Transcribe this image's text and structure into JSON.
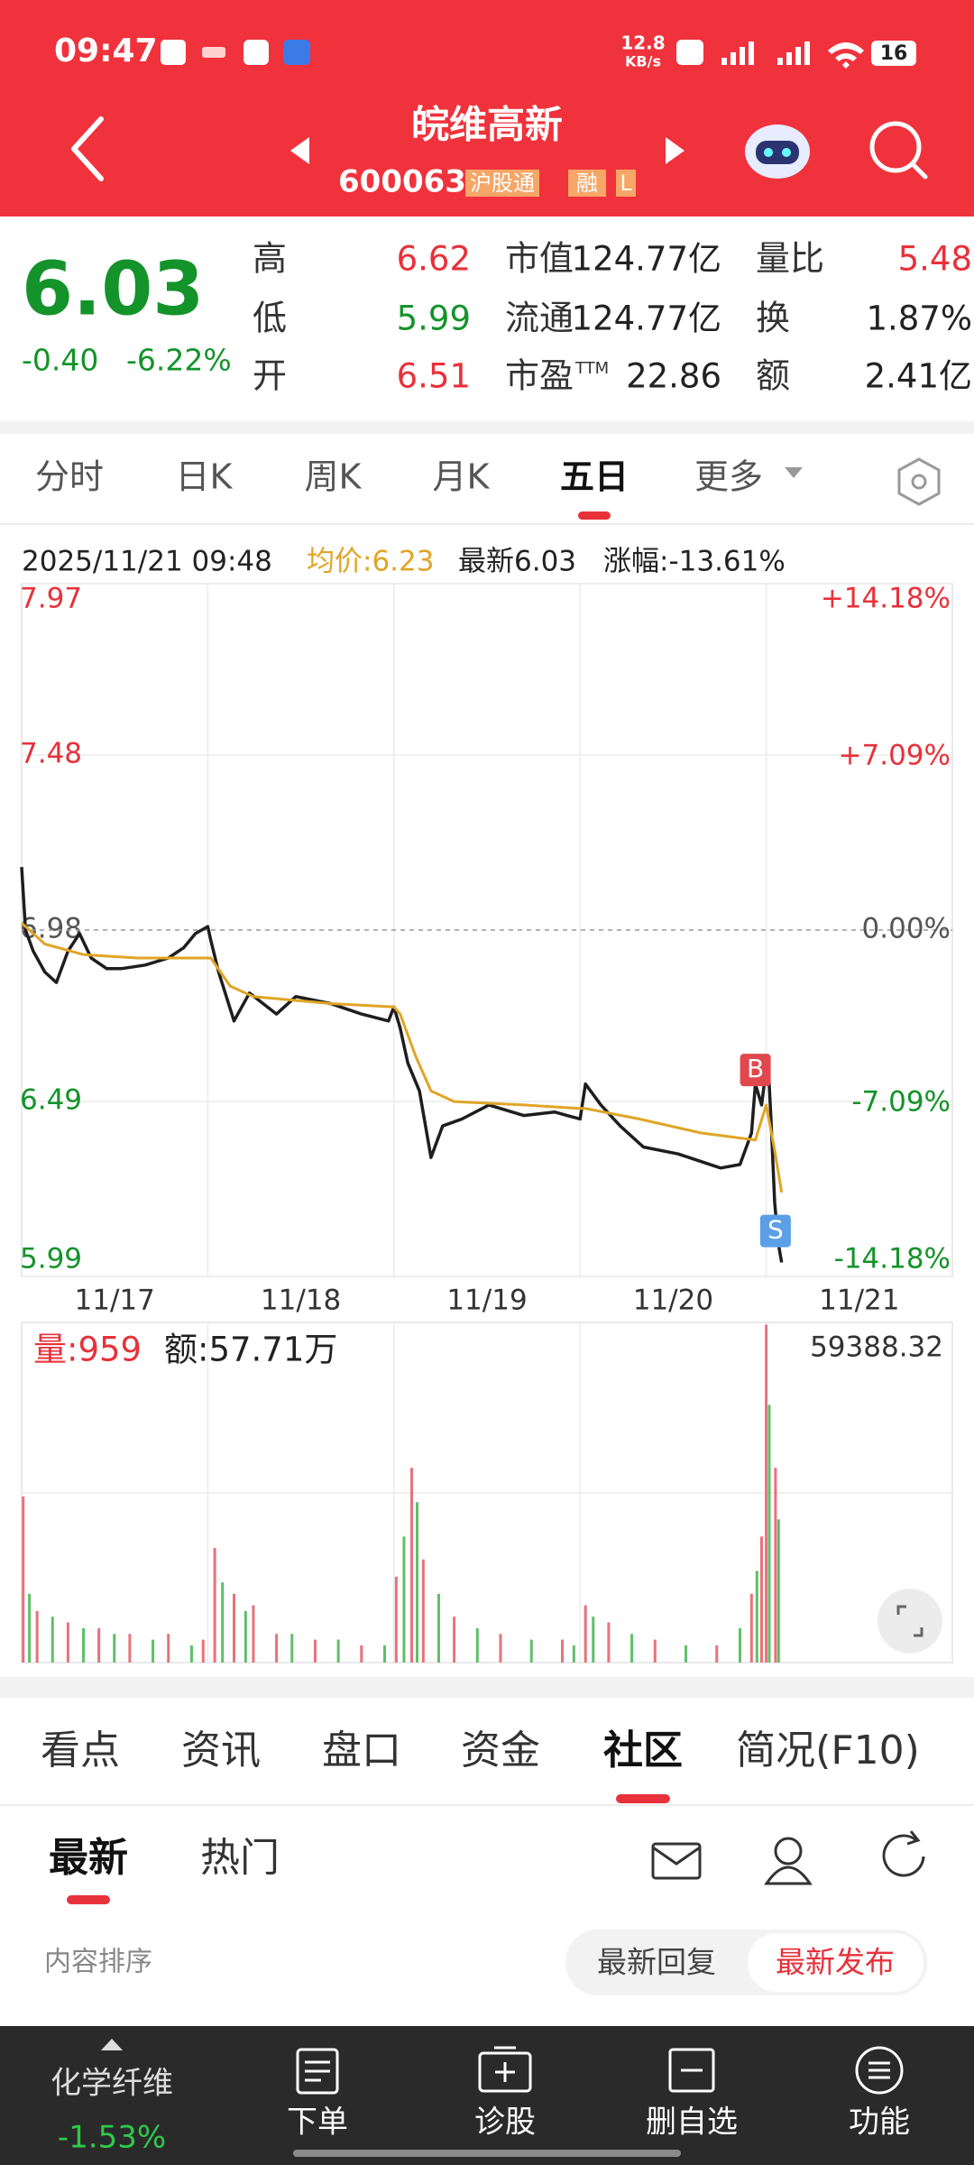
{
  "status_bar": {
    "time": "09:47",
    "net_speed": "12.8",
    "net_unit": "KB/s",
    "battery": "16"
  },
  "header": {
    "title": "皖维高新",
    "code": "600063",
    "tags": [
      "沪股通",
      "融",
      "L"
    ]
  },
  "quote": {
    "price": "6.03",
    "change": "-0.40",
    "change_pct": "-6.22%",
    "stats": [
      {
        "label": "高",
        "value": "6.62",
        "color": "#e8313a"
      },
      {
        "label": "低",
        "value": "5.99",
        "color": "#14932a"
      },
      {
        "label": "开",
        "value": "6.51",
        "color": "#e8313a"
      },
      {
        "label": "市值",
        "value": "124.77亿",
        "color": "#222222"
      },
      {
        "label": "流通",
        "value": "124.77亿",
        "color": "#222222"
      },
      {
        "label": "市盈",
        "sup": "TTM",
        "value": "22.86",
        "color": "#222222"
      },
      {
        "label": "量比",
        "value": "5.48",
        "color": "#e8313a"
      },
      {
        "label": "换",
        "value": "1.87%",
        "color": "#222222"
      },
      {
        "label": "额",
        "value": "2.41亿",
        "color": "#222222"
      }
    ]
  },
  "period_tabs": {
    "items": [
      "分时",
      "日K",
      "周K",
      "月K",
      "五日",
      "更多"
    ],
    "selected": 4
  },
  "chart_info": {
    "datetime": "2025/11/21 09:48",
    "avg": "均价:6.23",
    "latest": "最新6.03",
    "change": "涨幅:-13.61%"
  },
  "chart_data": [
    {
      "type": "line",
      "categories": [
        "11/17",
        "11/18",
        "11/19",
        "11/20",
        "11/21"
      ],
      "xlim": [
        0,
        1205
      ],
      "ylim": [
        5.99,
        7.97
      ],
      "yticks": [
        5.99,
        6.49,
        6.98,
        7.48,
        7.97
      ],
      "y2lim": [
        -14.18,
        14.18
      ],
      "y2ticks": [
        {
          "value": -14.18,
          "label": "-14.18%"
        },
        {
          "value": -7.09,
          "label": "-7.09%"
        },
        {
          "value": 0,
          "label": "0.00%"
        },
        {
          "value": 7.09,
          "label": "+7.09%"
        },
        {
          "value": 14.18,
          "label": "+14.18%"
        }
      ],
      "prev_close": 6.98,
      "grid": true,
      "series": [
        {
          "color": "#1e1e1e",
          "x": [
            0,
            5,
            15,
            30,
            45,
            60,
            75,
            90,
            110,
            130,
            160,
            190,
            210,
            225,
            241,
            245,
            255,
            275,
            295,
            330,
            355,
            400,
            440,
            475,
            482,
            490,
            500,
            515,
            530,
            545,
            570,
            605,
            650,
            690,
            723,
            730,
            750,
            775,
            805,
            850,
            905,
            930,
            945,
            950,
            958,
            966,
            970,
            975,
            980,
            984
          ],
          "values": [
            7.16,
            6.98,
            6.92,
            6.86,
            6.83,
            6.92,
            6.97,
            6.9,
            6.87,
            6.87,
            6.88,
            6.9,
            6.93,
            6.97,
            6.99,
            6.95,
            6.86,
            6.72,
            6.8,
            6.74,
            6.79,
            6.77,
            6.74,
            6.72,
            6.76,
            6.7,
            6.6,
            6.52,
            6.33,
            6.42,
            6.44,
            6.48,
            6.45,
            6.46,
            6.44,
            6.54,
            6.48,
            6.42,
            6.36,
            6.34,
            6.3,
            6.31,
            6.4,
            6.54,
            6.48,
            6.62,
            6.45,
            6.2,
            6.08,
            6.03
          ]
        },
        {
          "color": "#e0a526",
          "x": [
            0,
            30,
            80,
            150,
            241,
            245,
            270,
            300,
            400,
            482,
            490,
            510,
            530,
            560,
            650,
            723,
            730,
            800,
            880,
            950,
            964,
            975,
            984
          ],
          "values": [
            7.0,
            6.94,
            6.91,
            6.9,
            6.9,
            6.9,
            6.82,
            6.79,
            6.77,
            6.76,
            6.74,
            6.62,
            6.52,
            6.49,
            6.48,
            6.47,
            6.47,
            6.44,
            6.4,
            6.38,
            6.48,
            6.35,
            6.23
          ]
        }
      ],
      "markers": [
        {
          "label": "B",
          "x": 950,
          "value": 6.58,
          "color": "#e0484e"
        },
        {
          "label": "S",
          "x": 976,
          "value": 6.12,
          "color": "#5b9fe6"
        }
      ]
    },
    {
      "type": "bar",
      "title": "量:959",
      "subtitle": "额:57.71万",
      "xlim": [
        0,
        1205
      ],
      "ylim": [
        0,
        59388.32
      ],
      "yticks": [
        59388.32
      ],
      "series": [
        {
          "color": "#e8727a",
          "x": [
            2,
            20,
            60,
            100,
            140,
            190,
            235,
            250,
            275,
            300,
            330,
            380,
            440,
            485,
            505,
            520,
            560,
            620,
            700,
            730,
            760,
            820,
            900,
            945,
            958,
            964,
            976
          ],
          "values": [
            29000,
            9000,
            7000,
            6000,
            5000,
            5000,
            4000,
            20000,
            12000,
            10000,
            5000,
            4000,
            3000,
            15000,
            34000,
            18000,
            8000,
            5000,
            4000,
            10000,
            7000,
            4000,
            3000,
            12000,
            22000,
            59000,
            34000
          ]
        },
        {
          "color": "#5fbf6a",
          "x": [
            10,
            40,
            80,
            120,
            170,
            220,
            260,
            290,
            350,
            410,
            470,
            495,
            512,
            540,
            590,
            660,
            715,
            740,
            790,
            860,
            930,
            952,
            968,
            980
          ],
          "values": [
            12000,
            8000,
            6000,
            5000,
            4000,
            3000,
            14000,
            9000,
            5000,
            4000,
            3000,
            22000,
            28000,
            12000,
            6000,
            4000,
            3000,
            8000,
            5000,
            3000,
            6000,
            16000,
            45000,
            25000
          ]
        }
      ]
    }
  ],
  "info_tabs": {
    "items": [
      "看点",
      "资讯",
      "盘口",
      "资金",
      "社区",
      "简况(F10)"
    ],
    "selected": 4
  },
  "community": {
    "tabs": [
      "最新",
      "热门"
    ],
    "selected": 0,
    "sort_label": "内容排序",
    "sort_options": [
      "最新回复",
      "最新发布"
    ],
    "sort_selected": 1
  },
  "bottom_bar": {
    "sector": "化学纤维",
    "sector_change": "-1.53%",
    "items": [
      "下单",
      "诊股",
      "删自选",
      "功能"
    ]
  }
}
